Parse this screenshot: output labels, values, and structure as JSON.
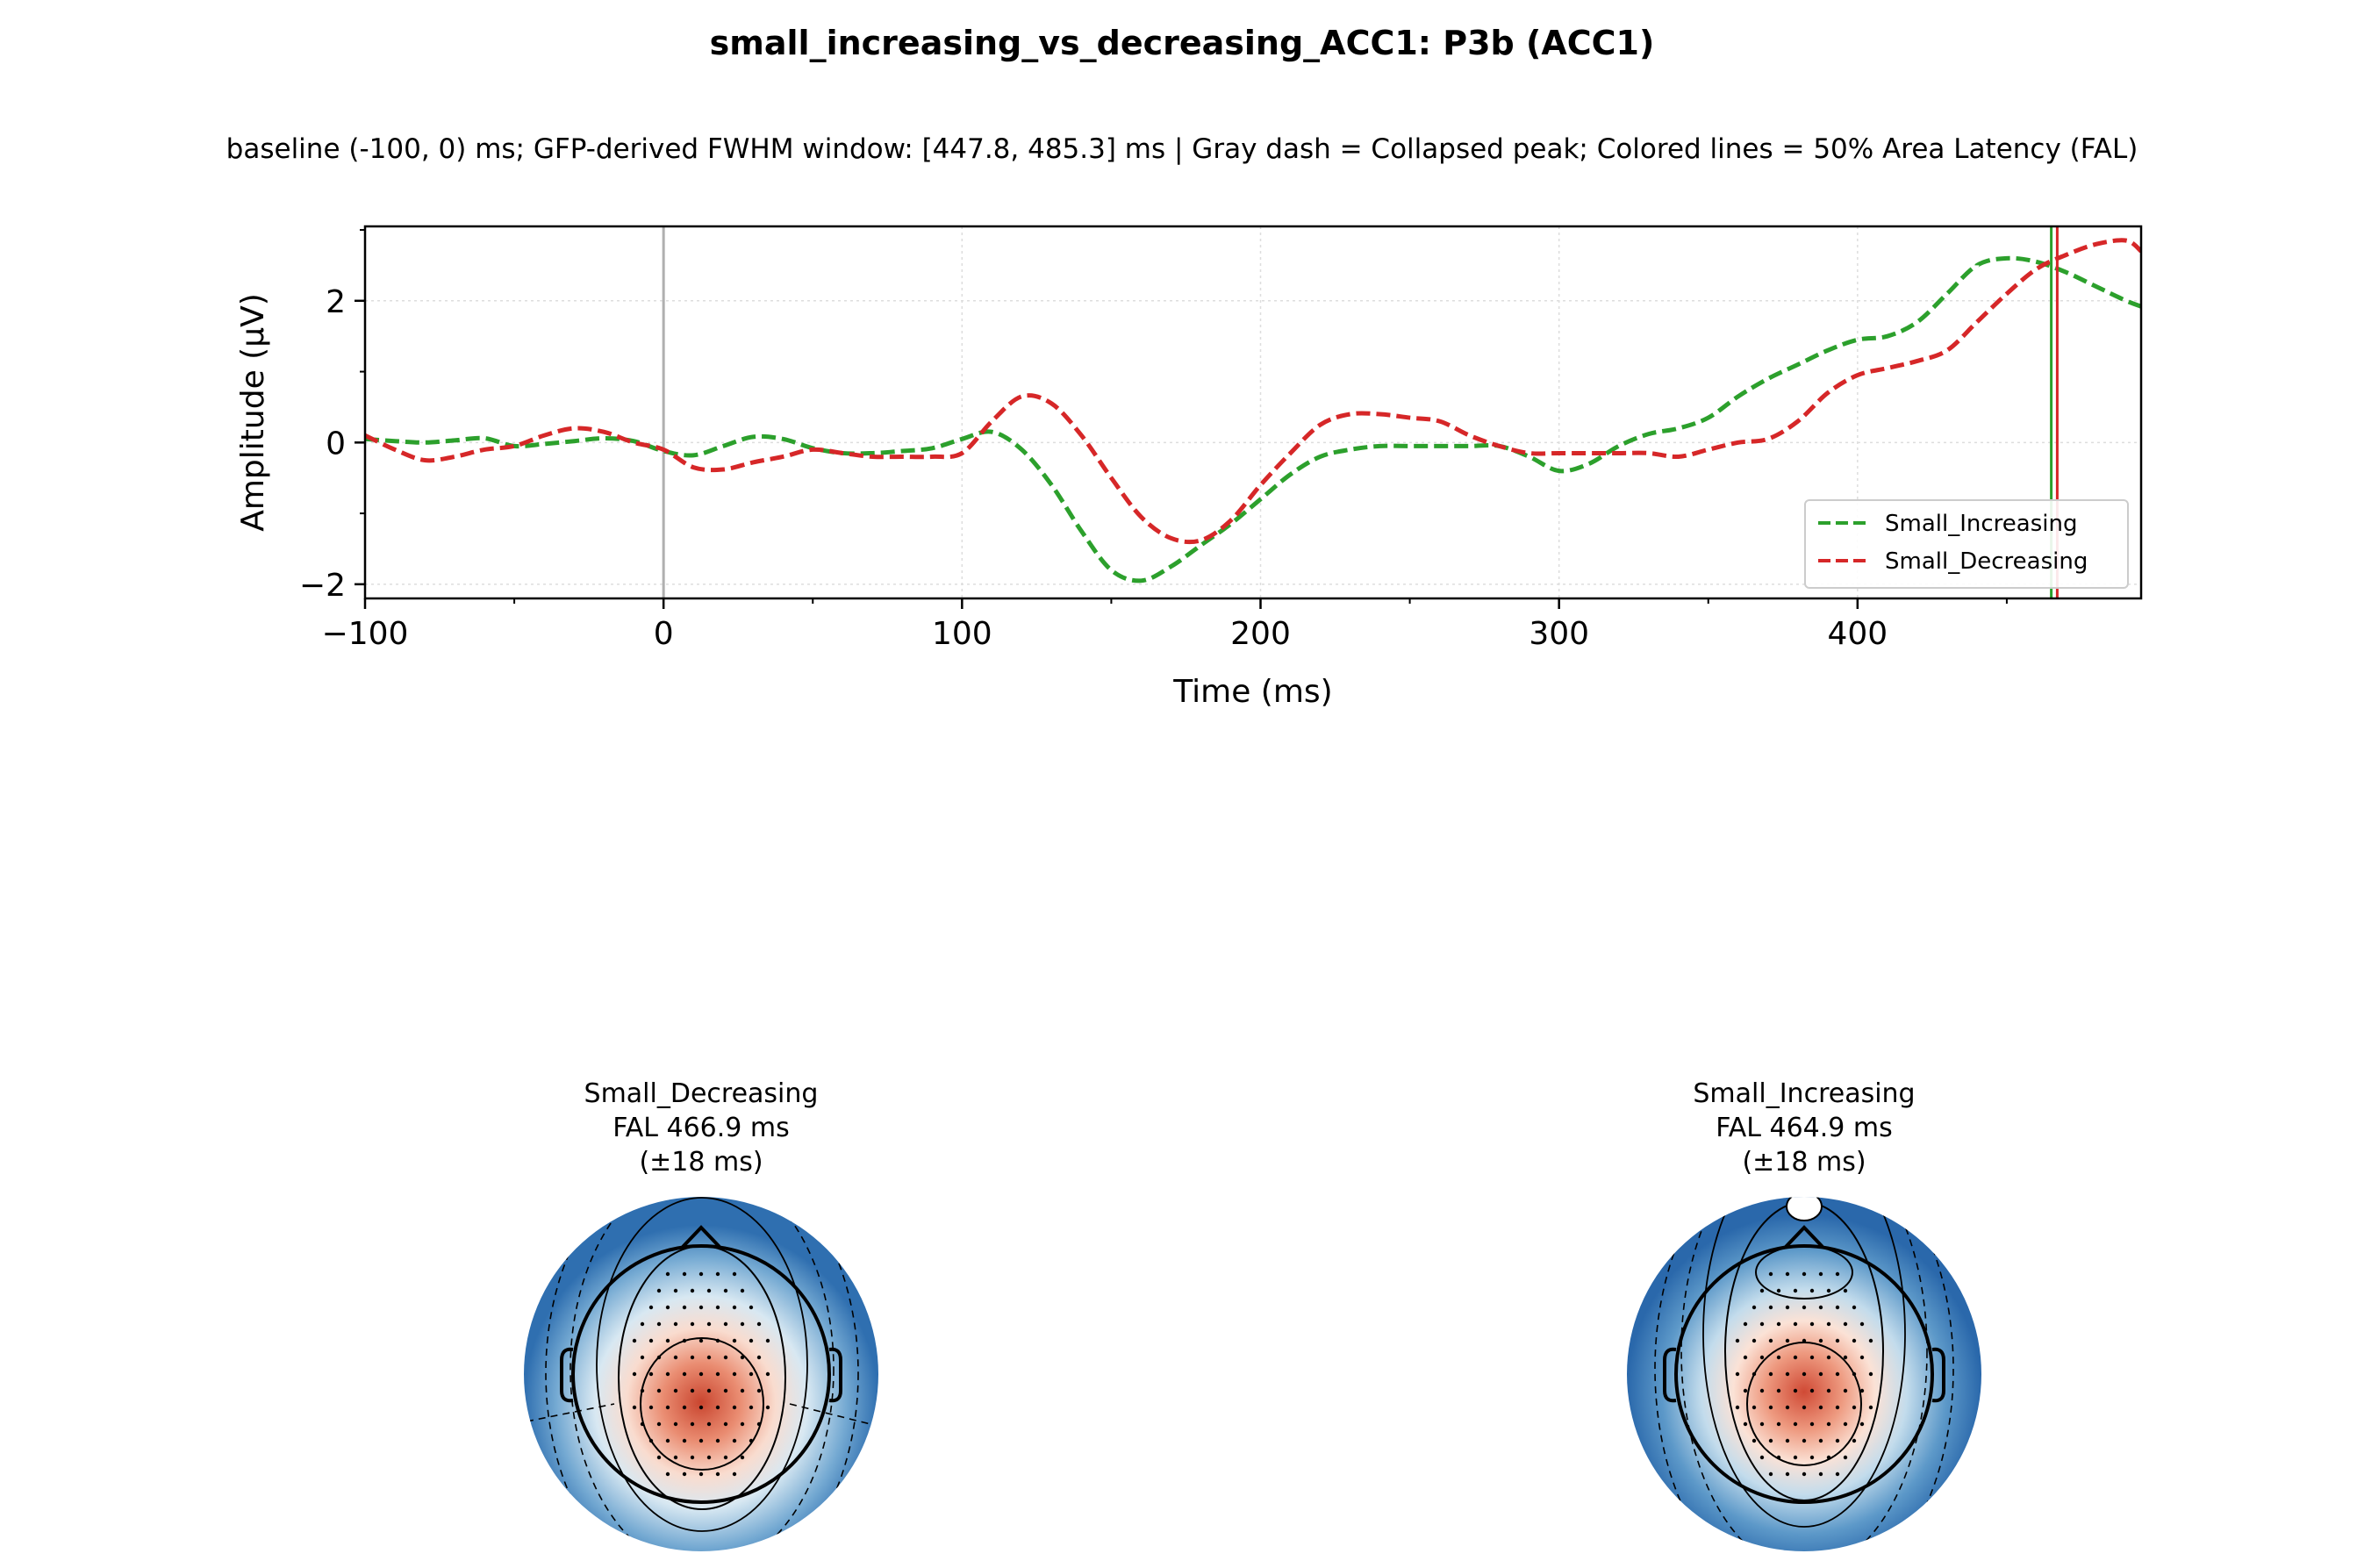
{
  "figure": {
    "title": "small_increasing_vs_decreasing_ACC1: P3b (ACC1)",
    "subtitle": "baseline (-100, 0) ms; GFP-derived FWHM window: [447.8, 485.3] ms | Gray dash = Collapsed peak; Colored lines = 50% Area Latency (FAL)"
  },
  "chart_data": {
    "type": "line",
    "xlabel": "Time (ms)",
    "ylabel": "Amplitude (µV)",
    "xlim": [
      -100,
      495
    ],
    "ylim": [
      -2.2,
      3.05
    ],
    "xticks": [
      -100,
      0,
      100,
      200,
      300,
      400
    ],
    "xtick_labels": [
      "−100",
      "0",
      "100",
      "200",
      "300",
      "400"
    ],
    "yticks": [
      -2,
      0,
      2
    ],
    "ytick_labels": [
      "−2",
      "0",
      "2"
    ],
    "grid": true,
    "legend_position": "lower-right",
    "zero_line": {
      "x": 0,
      "color": "#b0b0b0"
    },
    "series": [
      {
        "name": "Small_Increasing",
        "color": "#2ca02c",
        "dash": "dashed",
        "x": [
          -100,
          -90,
          -80,
          -70,
          -60,
          -50,
          -40,
          -30,
          -20,
          -10,
          0,
          10,
          20,
          30,
          40,
          50,
          60,
          70,
          80,
          90,
          100,
          110,
          120,
          130,
          140,
          150,
          160,
          170,
          180,
          190,
          200,
          210,
          220,
          230,
          240,
          250,
          260,
          270,
          280,
          290,
          300,
          310,
          320,
          330,
          340,
          350,
          360,
          370,
          380,
          390,
          400,
          410,
          420,
          430,
          440,
          450,
          460,
          470,
          480,
          490,
          495
        ],
        "y": [
          0.05,
          0.02,
          0.0,
          0.03,
          0.06,
          -0.05,
          -0.02,
          0.02,
          0.06,
          0.02,
          -0.12,
          -0.18,
          -0.05,
          0.08,
          0.05,
          -0.08,
          -0.15,
          -0.15,
          -0.12,
          -0.08,
          0.05,
          0.15,
          -0.1,
          -0.6,
          -1.25,
          -1.8,
          -1.95,
          -1.75,
          -1.45,
          -1.15,
          -0.8,
          -0.45,
          -0.2,
          -0.1,
          -0.05,
          -0.05,
          -0.05,
          -0.05,
          -0.05,
          -0.2,
          -0.4,
          -0.3,
          -0.05,
          0.12,
          0.2,
          0.35,
          0.65,
          0.9,
          1.1,
          1.3,
          1.45,
          1.5,
          1.7,
          2.1,
          2.5,
          2.6,
          2.55,
          2.4,
          2.2,
          2.0,
          1.92
        ]
      },
      {
        "name": "Small_Decreasing",
        "color": "#d62728",
        "dash": "dashed",
        "x": [
          -100,
          -90,
          -80,
          -70,
          -60,
          -50,
          -40,
          -30,
          -20,
          -10,
          0,
          10,
          20,
          30,
          40,
          50,
          60,
          70,
          80,
          90,
          100,
          110,
          120,
          130,
          140,
          150,
          160,
          170,
          180,
          190,
          200,
          210,
          220,
          230,
          240,
          250,
          260,
          270,
          280,
          290,
          300,
          310,
          320,
          330,
          340,
          350,
          360,
          370,
          380,
          390,
          400,
          410,
          420,
          430,
          440,
          450,
          460,
          470,
          480,
          490,
          495
        ],
        "y": [
          0.1,
          -0.1,
          -0.25,
          -0.2,
          -0.1,
          -0.05,
          0.1,
          0.2,
          0.15,
          0.0,
          -0.1,
          -0.35,
          -0.38,
          -0.28,
          -0.2,
          -0.1,
          -0.15,
          -0.2,
          -0.2,
          -0.2,
          -0.15,
          0.3,
          0.65,
          0.55,
          0.1,
          -0.5,
          -1.05,
          -1.35,
          -1.38,
          -1.1,
          -0.6,
          -0.15,
          0.25,
          0.4,
          0.4,
          0.35,
          0.3,
          0.1,
          -0.05,
          -0.15,
          -0.15,
          -0.15,
          -0.15,
          -0.15,
          -0.2,
          -0.1,
          0.0,
          0.05,
          0.3,
          0.7,
          0.95,
          1.05,
          1.15,
          1.3,
          1.7,
          2.1,
          2.45,
          2.65,
          2.8,
          2.85,
          2.7
        ]
      }
    ],
    "fal_markers": [
      {
        "x": 464.9,
        "color": "#2ca02c"
      },
      {
        "x": 466.9,
        "color": "#d62728"
      }
    ]
  },
  "topomaps": [
    {
      "title_lines": [
        "Small_Decreasing",
        "FAL 466.9 ms",
        "(±18 ms)"
      ]
    },
    {
      "title_lines": [
        "Small_Increasing",
        "FAL 464.9 ms",
        "(±18 ms)"
      ]
    }
  ]
}
